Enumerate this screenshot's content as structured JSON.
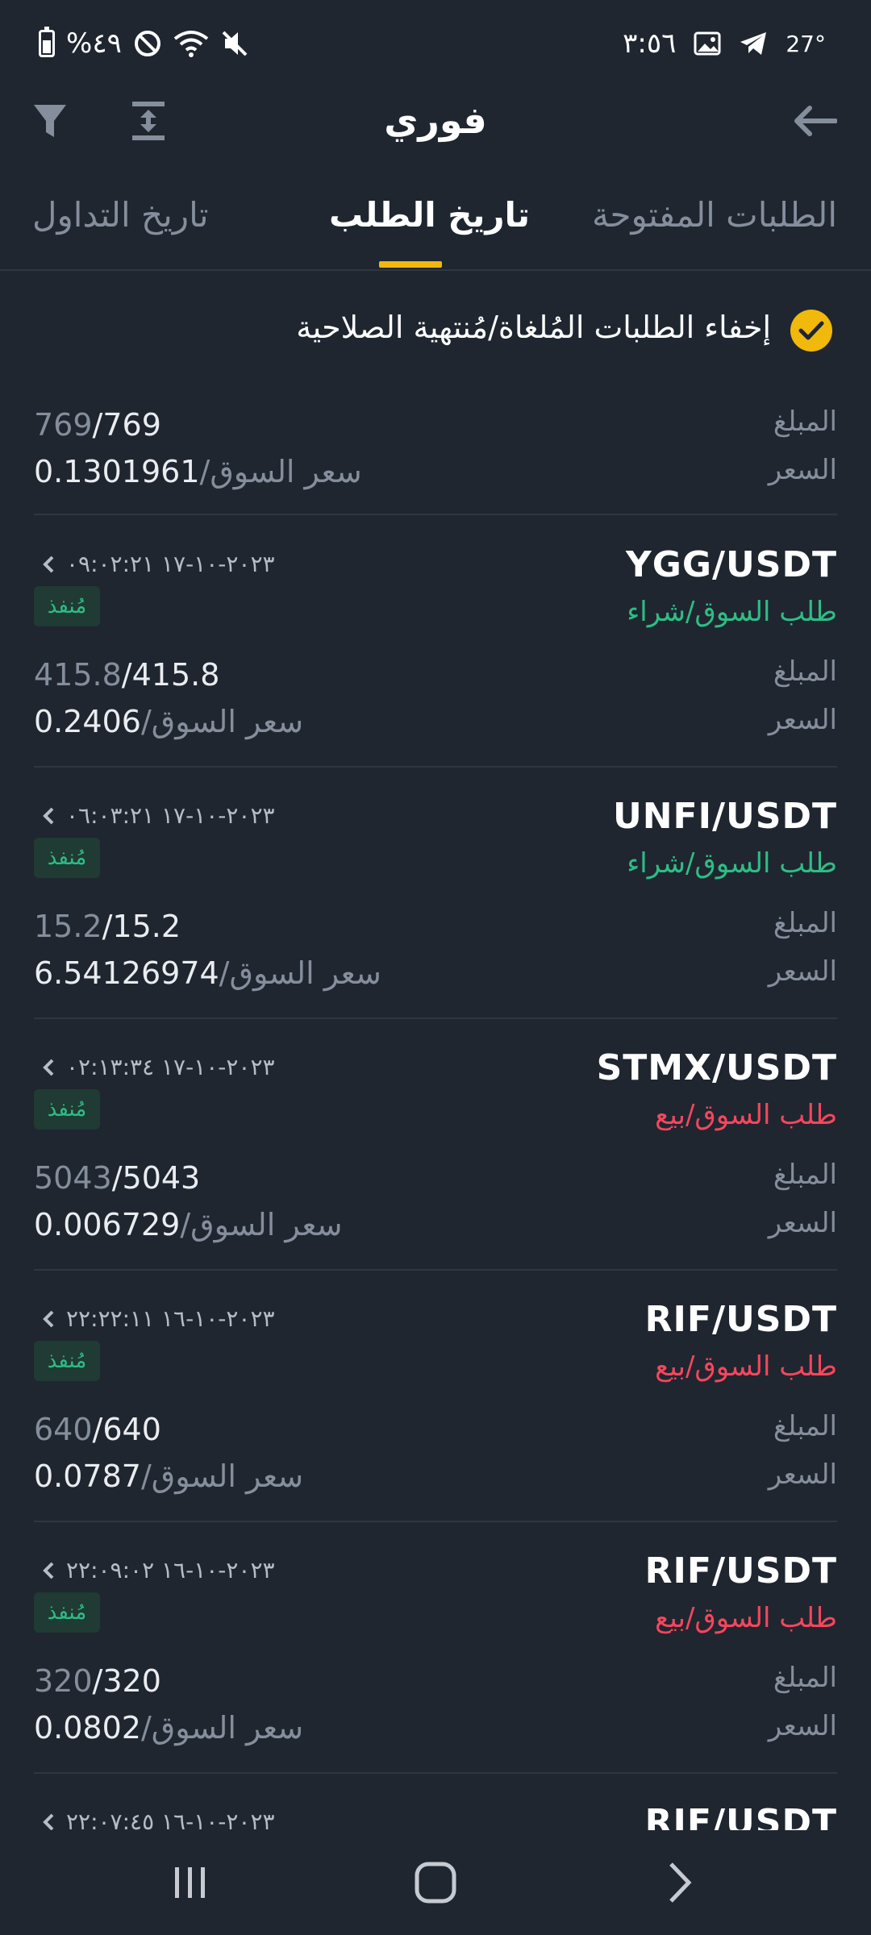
{
  "status_bar": {
    "time": "٣:٥٦",
    "temperature": "27°",
    "battery": "%٤٩"
  },
  "header": {
    "title": "فوري",
    "back_icon": "arrow-left-icon",
    "filter_icon": "filter-icon",
    "expand_icon": "expand-icon"
  },
  "tabs": [
    {
      "label": "تاريخ التداول",
      "active": false
    },
    {
      "label": "تاريخ الطلب",
      "active": true
    },
    {
      "label": "الطلبات المفتوحة",
      "active": false
    }
  ],
  "filter": {
    "label": "إخفاء الطلبات المُلغاة/مُنتهية الصلاحية",
    "checked": true
  },
  "labels": {
    "amount": "المبلغ",
    "price": "السعر",
    "market_suffix": "/سعر السوق"
  },
  "partial_order": {
    "amount_filled": "769",
    "amount_total": "/769",
    "price": "0.1301961"
  },
  "orders": [
    {
      "pair": "YGG/USDT",
      "date": "٢٠٢٣-١٠-١٧ ٠٩:٠٢:٢١",
      "type": "طلب السوق/شراء",
      "side": "buy",
      "status": "مُنفذ",
      "amount_filled": "415.8",
      "amount_total": "/415.8",
      "price": "0.2406"
    },
    {
      "pair": "UNFI/USDT",
      "date": "٢٠٢٣-١٠-١٧ ٠٦:٠٣:٢١",
      "type": "طلب السوق/شراء",
      "side": "buy",
      "status": "مُنفذ",
      "amount_filled": "15.2",
      "amount_total": "/15.2",
      "price": "6.54126974"
    },
    {
      "pair": "STMX/USDT",
      "date": "٢٠٢٣-١٠-١٧ ٠٢:١٣:٣٤",
      "type": "طلب السوق/بيع",
      "side": "sell",
      "status": "مُنفذ",
      "amount_filled": "5043",
      "amount_total": "/5043",
      "price": "0.006729"
    },
    {
      "pair": "RIF/USDT",
      "date": "٢٠٢٣-١٠-١٦ ٢٢:٢٢:١١",
      "type": "طلب السوق/بيع",
      "side": "sell",
      "status": "مُنفذ",
      "amount_filled": "640",
      "amount_total": "/640",
      "price": "0.0787"
    },
    {
      "pair": "RIF/USDT",
      "date": "٢٠٢٣-١٠-١٦ ٢٢:٠٩:٠٢",
      "type": "طلب السوق/بيع",
      "side": "sell",
      "status": "مُنفذ",
      "amount_filled": "320",
      "amount_total": "/320",
      "price": "0.0802"
    }
  ],
  "partial_bottom": {
    "pair": "RIF/USDT",
    "date": "٢٠٢٣-١٠-١٦ ٢٢:٠٧:٤٥"
  },
  "colors": {
    "background": "#1f2630",
    "accent": "#f0b90b",
    "buy": "#2ebd85",
    "sell": "#f6465d"
  }
}
